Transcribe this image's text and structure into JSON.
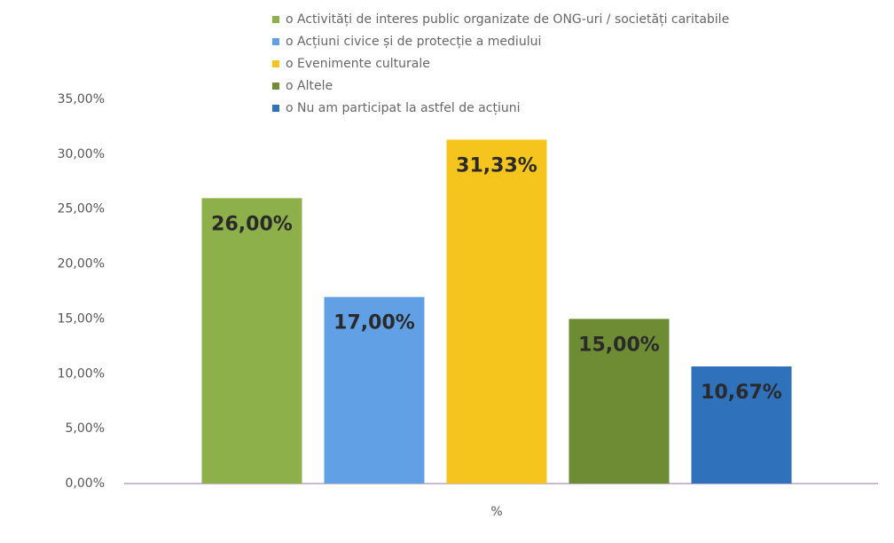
{
  "chart_data": {
    "type": "bar",
    "categories": [
      "%"
    ],
    "series": [
      {
        "name": "o  Activități de interes public organizate de ONG-uri / societăți caritabile",
        "color": "#8db04a",
        "values": [
          26
        ],
        "value_labels": [
          "26,00%"
        ]
      },
      {
        "name": "o  Acțiuni civice și de protecție a mediului",
        "color": "#62a0e6",
        "values": [
          17
        ],
        "value_labels": [
          "17,00%"
        ]
      },
      {
        "name": "o  Evenimente culturale",
        "color": "#f6c51d",
        "values": [
          31.33
        ],
        "value_labels": [
          "31,33%"
        ]
      },
      {
        "name": "o  Altele",
        "color": "#6e8c33",
        "values": [
          15
        ],
        "value_labels": [
          "15,00%"
        ]
      },
      {
        "name": "o  Nu am participat la astfel de acțiuni",
        "color": "#3071bb",
        "values": [
          10.67
        ],
        "value_labels": [
          "10,67%"
        ]
      }
    ],
    "ylim": [
      0,
      35
    ],
    "yticks": [
      {
        "value": 0,
        "label": "0,00%"
      },
      {
        "value": 5,
        "label": "5,00%"
      },
      {
        "value": 10,
        "label": "10,00%"
      },
      {
        "value": 15,
        "label": "15,00%"
      },
      {
        "value": 20,
        "label": "20,00%"
      },
      {
        "value": 25,
        "label": "25,00%"
      },
      {
        "value": 30,
        "label": "30,00%"
      },
      {
        "value": 35,
        "label": "35,00%"
      }
    ],
    "legend": "top"
  }
}
